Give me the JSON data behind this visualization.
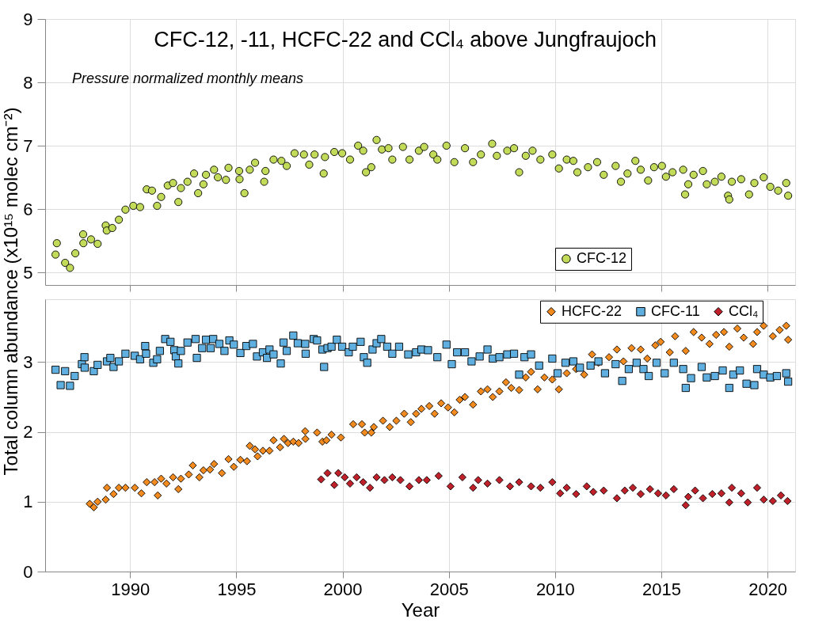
{
  "chart_data": [
    {
      "type": "scatter",
      "title": "CFC-12, -11, HCFC-22 and CCl₄ above Jungfraujoch",
      "subtitle": "Pressure normalized monthly means",
      "ylabel": "Total column abundance (x10¹⁵ molec cm⁻²)",
      "xlim": [
        1986.0,
        2021.3
      ],
      "xticks": [
        1990,
        1995,
        2000,
        2005,
        2010,
        2015,
        2020
      ],
      "ylim": [
        4.8,
        9
      ],
      "yticks": [
        5,
        6,
        7,
        8,
        9
      ],
      "tick_labels": "y",
      "grid": true,
      "legend": "right",
      "series": [
        {
          "name": "CFC-12",
          "color": "#c2dc5a",
          "marker": "circle",
          "x": [
            1986.49,
            1986.55,
            1986.94,
            1987.17,
            1987.42,
            1987.79,
            1987.8,
            1988.16,
            1988.47,
            1988.85,
            1988.9,
            1989.16,
            1989.47,
            1989.78,
            1990.15,
            1990.47,
            1990.78,
            1991.03,
            1991.27,
            1991.46,
            1991.77,
            1992.02,
            1992.27,
            1992.39,
            1992.7,
            1993.01,
            1993.2,
            1993.45,
            1993.57,
            1993.95,
            1994.13,
            1994.51,
            1994.63,
            1995.13,
            1995.15,
            1995.38,
            1995.63,
            1995.88,
            1996.31,
            1996.37,
            1996.75,
            1997.12,
            1997.37,
            1997.74,
            1998.18,
            1998.43,
            1998.68,
            1999.11,
            1999.17,
            1999.61,
            1999.98,
            2000.35,
            2000.73,
            2000.97,
            2001.1,
            2001.35,
            2001.6,
            2001.85,
            2002.16,
            2002.34,
            2002.84,
            2003.15,
            2003.59,
            2003.84,
            2004.27,
            2004.46,
            2004.89,
            2005.26,
            2005.76,
            2006.14,
            2006.51,
            2007.04,
            2007.26,
            2007.75,
            2008.07,
            2008.31,
            2008.62,
            2008.94,
            2009.31,
            2009.87,
            2010.18,
            2010.55,
            2010.86,
            2011.05,
            2011.55,
            2011.98,
            2012.29,
            2012.85,
            2013.1,
            2013.41,
            2013.78,
            2014.03,
            2014.38,
            2014.66,
            2015.03,
            2015.22,
            2015.53,
            2016.03,
            2016.12,
            2016.27,
            2016.52,
            2016.96,
            2017.14,
            2017.52,
            2017.83,
            2018.14,
            2018.2,
            2018.32,
            2018.76,
            2019.13,
            2019.38,
            2019.82,
            2020.13,
            2020.5,
            2020.88,
            2020.97
          ],
          "values": [
            5.28,
            5.46,
            5.15,
            5.07,
            5.3,
            5.6,
            5.46,
            5.52,
            5.45,
            5.74,
            5.66,
            5.7,
            5.83,
            5.99,
            6.05,
            6.03,
            6.31,
            6.29,
            6.05,
            6.19,
            6.37,
            6.41,
            6.11,
            6.33,
            6.43,
            6.56,
            6.25,
            6.39,
            6.54,
            6.62,
            6.5,
            6.46,
            6.65,
            6.6,
            6.47,
            6.25,
            6.62,
            6.73,
            6.43,
            6.6,
            6.78,
            6.76,
            6.68,
            6.88,
            6.86,
            6.7,
            6.86,
            6.56,
            6.82,
            6.9,
            6.88,
            6.78,
            7.0,
            6.92,
            6.58,
            6.66,
            7.09,
            6.94,
            6.96,
            6.78,
            6.98,
            6.78,
            6.92,
            6.98,
            6.86,
            6.78,
            7.0,
            6.74,
            6.96,
            6.74,
            6.86,
            7.03,
            6.84,
            6.92,
            6.96,
            6.58,
            6.84,
            6.92,
            6.78,
            6.86,
            6.64,
            6.78,
            6.76,
            6.58,
            6.66,
            6.74,
            6.54,
            6.68,
            6.43,
            6.56,
            6.76,
            6.62,
            6.45,
            6.66,
            6.68,
            6.51,
            6.58,
            6.62,
            6.23,
            6.39,
            6.54,
            6.6,
            6.39,
            6.43,
            6.51,
            6.21,
            6.15,
            6.43,
            6.47,
            6.23,
            6.41,
            6.5,
            6.35,
            6.29,
            6.41,
            6.21
          ]
        }
      ]
    },
    {
      "type": "scatter",
      "xlabel": "Year",
      "xlim": [
        1986.0,
        2021.3
      ],
      "xticks": [
        1990,
        1995,
        2000,
        2005,
        2010,
        2015,
        2020
      ],
      "ylim": [
        0,
        3.9
      ],
      "yticks": [
        0,
        1,
        2,
        3
      ],
      "grid": true,
      "legend": "top",
      "series": [
        {
          "name": "HCFC-22",
          "color": "#f28a1e",
          "marker": "diamond",
          "x": [
            1988.1,
            1988.29,
            1988.47,
            1988.85,
            1988.91,
            1989.22,
            1989.47,
            1989.78,
            1990.22,
            1990.53,
            1990.78,
            1991.15,
            1991.3,
            1991.46,
            1991.71,
            1992.02,
            1992.27,
            1992.39,
            1992.76,
            1992.95,
            1993.26,
            1993.45,
            1993.76,
            1993.95,
            1994.32,
            1994.63,
            1994.88,
            1995.19,
            1995.5,
            1995.63,
            1995.88,
            1996.0,
            1996.25,
            1996.56,
            1996.75,
            1997.06,
            1997.24,
            1997.43,
            1997.68,
            1997.93,
            1998.24,
            1998.25,
            1998.8,
            1999.05,
            1999.24,
            1999.48,
            1999.92,
            2000.5,
            2000.91,
            2001.04,
            2001.35,
            2001.47,
            2001.9,
            2002.22,
            2002.53,
            2002.9,
            2003.21,
            2003.46,
            2003.71,
            2004.08,
            2004.33,
            2004.64,
            2004.96,
            2005.26,
            2005.51,
            2005.76,
            2006.14,
            2006.51,
            2006.82,
            2007.07,
            2007.38,
            2007.69,
            2007.94,
            2008.31,
            2008.62,
            2008.87,
            2009.18,
            2009.5,
            2009.87,
            2010.18,
            2010.55,
            2010.99,
            2011.37,
            2011.74,
            2012.04,
            2012.54,
            2012.91,
            2013.22,
            2013.6,
            2014.03,
            2014.34,
            2014.72,
            2014.97,
            2015.4,
            2015.65,
            2016.15,
            2016.52,
            2016.9,
            2017.27,
            2017.58,
            2017.95,
            2018.2,
            2018.58,
            2018.88,
            2019.32,
            2019.51,
            2019.82,
            2020.25,
            2020.57,
            2020.88,
            2020.97
          ],
          "values": [
            0.97,
            0.92,
            1.0,
            1.03,
            1.2,
            1.11,
            1.2,
            1.2,
            1.2,
            1.12,
            1.28,
            1.28,
            1.09,
            1.33,
            1.26,
            1.35,
            1.18,
            1.33,
            1.39,
            1.52,
            1.35,
            1.45,
            1.46,
            1.54,
            1.41,
            1.61,
            1.5,
            1.6,
            1.58,
            1.8,
            1.75,
            1.65,
            1.73,
            1.73,
            1.88,
            1.78,
            1.9,
            1.84,
            1.86,
            1.84,
            2.01,
            1.9,
            1.99,
            1.86,
            1.88,
            1.96,
            1.92,
            2.11,
            2.11,
            1.99,
            1.99,
            2.07,
            2.16,
            2.07,
            2.16,
            2.26,
            2.14,
            2.26,
            2.33,
            2.37,
            2.26,
            2.41,
            2.35,
            2.28,
            2.46,
            2.5,
            2.39,
            2.58,
            2.61,
            2.5,
            2.58,
            2.71,
            2.63,
            2.6,
            2.78,
            2.86,
            2.61,
            2.78,
            2.75,
            2.61,
            2.84,
            2.9,
            2.82,
            3.11,
            2.99,
            3.07,
            3.18,
            3.01,
            3.2,
            3.18,
            3.05,
            3.24,
            3.29,
            3.14,
            3.37,
            3.16,
            3.43,
            3.35,
            3.26,
            3.39,
            3.43,
            3.22,
            3.48,
            3.35,
            3.26,
            3.43,
            3.52,
            3.37,
            3.46,
            3.52,
            3.32
          ]
        },
        {
          "name": "CFC-11",
          "color": "#5fb0e0",
          "marker": "square",
          "x": [
            1986.49,
            1986.73,
            1986.94,
            1987.17,
            1987.39,
            1987.73,
            1987.85,
            1987.86,
            1988.29,
            1988.47,
            1988.91,
            1989.07,
            1989.22,
            1989.47,
            1989.78,
            1990.22,
            1990.47,
            1990.71,
            1990.75,
            1991.09,
            1991.27,
            1991.4,
            1991.65,
            1991.9,
            1992.08,
            1992.15,
            1992.27,
            1992.39,
            1992.7,
            1993.08,
            1993.14,
            1993.39,
            1993.57,
            1993.79,
            1993.91,
            1994.2,
            1994.44,
            1994.67,
            1994.88,
            1995.19,
            1995.47,
            1995.78,
            1995.97,
            1996.25,
            1996.44,
            1996.56,
            1996.75,
            1997.09,
            1997.22,
            1997.37,
            1997.68,
            1997.89,
            1998.24,
            1998.26,
            1998.64,
            1998.8,
            1999.05,
            1999.13,
            1999.29,
            1999.48,
            1999.73,
            1999.98,
            2000.29,
            2000.48,
            2000.85,
            2001.0,
            2001.16,
            2001.41,
            2001.6,
            2001.82,
            2002.1,
            2002.34,
            2002.66,
            2003.09,
            2003.46,
            2003.71,
            2004.02,
            2004.46,
            2004.89,
            2005.14,
            2005.39,
            2005.76,
            2006.07,
            2006.45,
            2006.82,
            2007.07,
            2007.38,
            2007.75,
            2008.07,
            2008.31,
            2008.56,
            2008.87,
            2009.25,
            2009.87,
            2010.12,
            2010.49,
            2010.86,
            2011.17,
            2011.67,
            2012.04,
            2012.35,
            2012.85,
            2013.16,
            2013.47,
            2013.84,
            2014.16,
            2014.41,
            2014.78,
            2015.16,
            2015.59,
            2016.03,
            2016.15,
            2016.4,
            2016.9,
            2017.14,
            2017.52,
            2017.89,
            2018.2,
            2018.39,
            2018.7,
            2019.01,
            2019.38,
            2019.51,
            2019.82,
            2020.13,
            2020.44,
            2020.88,
            2020.97
          ],
          "values": [
            2.89,
            2.67,
            2.87,
            2.66,
            2.8,
            2.97,
            3.07,
            2.92,
            2.87,
            2.96,
            3.01,
            3.06,
            2.93,
            3.01,
            3.12,
            3.09,
            3.04,
            3.23,
            3.12,
            2.99,
            3.04,
            3.16,
            3.33,
            3.29,
            3.17,
            3.08,
            2.98,
            3.16,
            3.28,
            3.33,
            3.06,
            3.2,
            3.32,
            3.2,
            3.33,
            3.26,
            3.16,
            3.31,
            3.25,
            3.13,
            3.23,
            3.26,
            3.08,
            3.14,
            3.06,
            3.18,
            3.11,
            2.98,
            3.28,
            3.16,
            3.38,
            3.27,
            3.26,
            3.12,
            3.33,
            3.31,
            3.18,
            2.93,
            3.2,
            3.22,
            3.32,
            3.22,
            3.14,
            3.22,
            3.29,
            3.07,
            2.99,
            3.18,
            3.27,
            3.33,
            3.22,
            3.12,
            3.22,
            3.11,
            3.14,
            3.18,
            3.17,
            3.07,
            3.25,
            2.97,
            3.14,
            3.14,
            3.01,
            3.08,
            3.18,
            3.05,
            3.07,
            3.11,
            3.12,
            2.82,
            3.07,
            3.11,
            2.95,
            3.05,
            2.84,
            2.99,
            3.01,
            2.92,
            2.95,
            3.01,
            2.84,
            2.97,
            2.73,
            2.9,
            2.99,
            2.9,
            2.8,
            2.99,
            2.84,
            2.99,
            2.9,
            2.63,
            2.77,
            2.93,
            2.78,
            2.8,
            2.88,
            2.63,
            2.82,
            2.88,
            2.69,
            2.67,
            2.9,
            2.82,
            2.78,
            2.8,
            2.84,
            2.72
          ]
        },
        {
          "name": "CCl₄",
          "color": "#c0202a",
          "marker": "diamond",
          "x": [
            1998.99,
            1999.29,
            1999.61,
            1999.8,
            2000.1,
            2000.35,
            2000.66,
            2000.97,
            2001.29,
            2001.6,
            2001.97,
            2002.34,
            2002.72,
            2003.15,
            2003.59,
            2003.96,
            2004.52,
            2005.08,
            2005.64,
            2006.14,
            2006.38,
            2006.82,
            2007.38,
            2007.88,
            2008.31,
            2008.87,
            2009.31,
            2009.87,
            2010.24,
            2010.55,
            2010.99,
            2011.49,
            2011.8,
            2012.29,
            2012.91,
            2013.28,
            2013.66,
            2014.03,
            2014.47,
            2014.85,
            2015.22,
            2015.59,
            2016.15,
            2016.27,
            2016.59,
            2016.96,
            2017.4,
            2017.83,
            2018.2,
            2018.32,
            2018.76,
            2019.07,
            2019.51,
            2019.82,
            2020.25,
            2020.63,
            2020.94
          ],
          "values": [
            1.32,
            1.41,
            1.24,
            1.41,
            1.35,
            1.26,
            1.35,
            1.28,
            1.2,
            1.35,
            1.31,
            1.35,
            1.31,
            1.22,
            1.31,
            1.31,
            1.37,
            1.22,
            1.35,
            1.2,
            1.31,
            1.26,
            1.31,
            1.22,
            1.28,
            1.22,
            1.2,
            1.28,
            1.12,
            1.2,
            1.11,
            1.22,
            1.14,
            1.16,
            1.05,
            1.16,
            1.2,
            1.11,
            1.18,
            1.12,
            1.09,
            1.18,
            0.95,
            1.07,
            1.16,
            1.05,
            1.11,
            1.12,
            0.99,
            1.2,
            1.12,
            0.99,
            1.2,
            1.03,
            1.01,
            1.09,
            1.01
          ]
        }
      ]
    }
  ]
}
